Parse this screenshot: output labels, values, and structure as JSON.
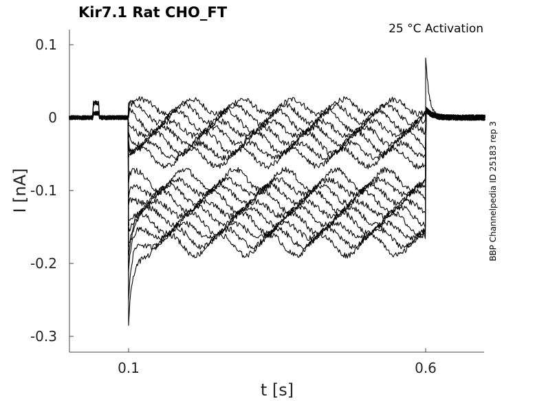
{
  "chart_data": {
    "type": "line",
    "title": "Kir7.1  Rat  CHO_FT",
    "annotation": "25 °C  Activation",
    "side_label": "BBP Channelpedia ID 25183 rep 3",
    "xlabel": "t [s]",
    "ylabel": "I [nA]",
    "xlim": [
      0.0,
      0.7
    ],
    "ylim": [
      -0.32,
      0.12
    ],
    "xticks": [
      0.1,
      0.6
    ],
    "xtick_labels": [
      "0.1",
      "0.6"
    ],
    "yticks": [
      0.1,
      0,
      -0.1,
      -0.2,
      -0.3
    ],
    "ytick_labels": [
      "0.1",
      "0",
      "-0.1",
      "-0.2",
      "-0.3"
    ],
    "grid": false,
    "stimulus": {
      "step_on": 0.1,
      "step_off": 0.6
    },
    "series_steady_levels_nA": [
      0.015,
      0.005,
      -0.005,
      -0.015,
      -0.025,
      -0.035,
      -0.045,
      -0.055,
      -0.085,
      -0.095,
      -0.105,
      -0.115,
      -0.125,
      -0.135,
      -0.145,
      -0.155,
      -0.165,
      -0.175
    ],
    "series_initial_peaks_nA": [
      0.02,
      0.01,
      0.0,
      -0.01,
      -0.02,
      -0.03,
      -0.04,
      -0.05,
      -0.09,
      -0.11,
      -0.12,
      -0.14,
      -0.15,
      -0.17,
      -0.19,
      -0.21,
      -0.25,
      -0.285
    ],
    "tail_peak_nA": 0.083
  }
}
